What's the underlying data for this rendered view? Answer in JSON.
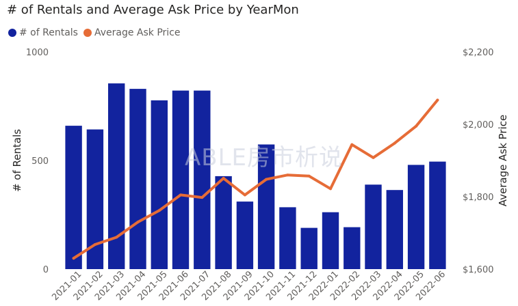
{
  "chart_data": {
    "type": "bar",
    "title": "# of Rentals and Average Ask Price by YearMon",
    "categories": [
      "2021-01",
      "2021-02",
      "2021-03",
      "2021-04",
      "2021-05",
      "2021-06",
      "2021-07",
      "2021-08",
      "2021-09",
      "2021-10",
      "2021-11",
      "2021-12",
      "2022-01",
      "2022-02",
      "2022-03",
      "2022-04",
      "2022-05",
      "2022-06"
    ],
    "series": [
      {
        "name": "# of Rentals",
        "type": "bar",
        "axis": "left",
        "color": "#12239E",
        "values": [
          660,
          643,
          855,
          830,
          777,
          822,
          822,
          428,
          311,
          574,
          285,
          190,
          262,
          193,
          389,
          364,
          480,
          495
        ]
      },
      {
        "name": "Average Ask Price",
        "type": "line",
        "axis": "right",
        "color": "#E66C37",
        "values": [
          1630,
          1668,
          1688,
          1730,
          1762,
          1805,
          1798,
          1851,
          1805,
          1848,
          1860,
          1857,
          1822,
          1944,
          1908,
          1948,
          1995,
          2067
        ]
      }
    ],
    "y_left": {
      "label": "# of Rentals",
      "ticks": [
        "0",
        "500",
        "1000"
      ],
      "range": [
        0,
        1000
      ],
      "tick_values": [
        0,
        500,
        1000
      ]
    },
    "y_right": {
      "label": "Average Ask Price",
      "ticks": [
        "$1,600",
        "$1,800",
        "$2,000",
        "$2,200"
      ],
      "range": [
        1600,
        2200
      ],
      "tick_values": [
        1600,
        1800,
        2000,
        2200
      ]
    },
    "legend_position": "top-left",
    "grid": false
  },
  "watermark": "ABLE房市析说"
}
